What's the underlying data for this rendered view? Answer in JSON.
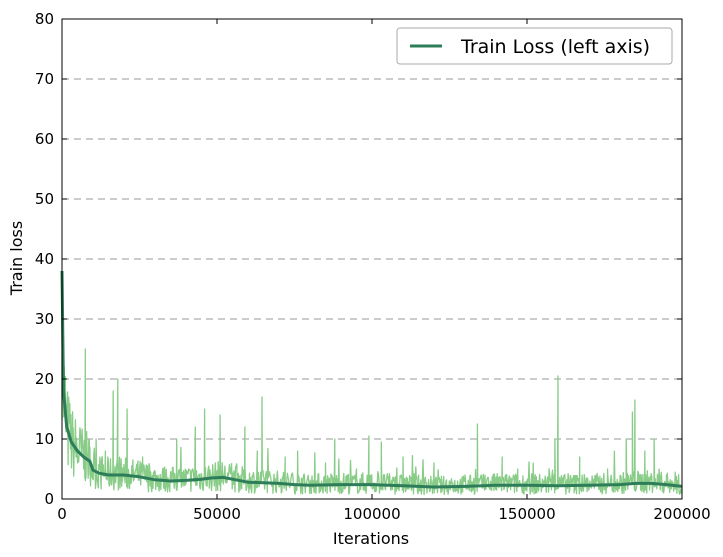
{
  "chart_data": {
    "type": "line",
    "title": "",
    "xlabel": "Iterations",
    "ylabel": "Train loss",
    "xlim": [
      0,
      200000
    ],
    "ylim": [
      0,
      80
    ],
    "x_ticks": [
      0,
      50000,
      100000,
      150000,
      200000
    ],
    "x_tick_labels": [
      "0",
      "50000",
      "100000",
      "150000",
      "200000"
    ],
    "y_ticks": [
      0,
      10,
      20,
      30,
      40,
      50,
      60,
      70,
      80
    ],
    "y_tick_labels": [
      "0",
      "10",
      "20",
      "30",
      "40",
      "50",
      "60",
      "70",
      "80"
    ],
    "grid": "horizontal dashed",
    "legend_position": "top-right",
    "legend_entries": [
      "Train Loss (left axis)"
    ],
    "colors": {
      "smoothed": "#2e7d5a",
      "raw": "#88cc88",
      "grid": "#999999"
    },
    "series": [
      {
        "name": "Train Loss (left axis)",
        "style": "smoothed",
        "x": [
          0,
          500,
          1500,
          3000,
          5000,
          7000,
          9000,
          10000,
          12000,
          15000,
          20000,
          25000,
          30000,
          35000,
          40000,
          45000,
          48000,
          52000,
          56000,
          60000,
          65000,
          70000,
          75000,
          80000,
          90000,
          100000,
          110000,
          120000,
          130000,
          140000,
          150000,
          160000,
          170000,
          180000,
          185000,
          190000,
          195000,
          200000
        ],
        "values": [
          38,
          18,
          12,
          9.5,
          8,
          7,
          6.3,
          4.8,
          4.3,
          4.0,
          4.0,
          3.7,
          3.2,
          3.0,
          3.1,
          3.3,
          3.5,
          3.6,
          3.2,
          2.8,
          2.7,
          2.6,
          2.4,
          2.3,
          2.4,
          2.4,
          2.2,
          2.0,
          2.1,
          2.3,
          2.3,
          2.2,
          2.3,
          2.4,
          2.6,
          2.6,
          2.4,
          2.1
        ]
      },
      {
        "style": "raw",
        "note_points": "noisy raw values; spikes listed",
        "x": [
          0,
          300,
          800,
          1200,
          2000,
          3500,
          5000,
          7000,
          7500,
          9000,
          11000,
          12500,
          14000,
          16500,
          18000,
          19500,
          21000,
          23000,
          26000,
          29000,
          33000,
          37000,
          40000,
          43000,
          46000,
          48000,
          51000,
          55000,
          59000,
          63000,
          64500,
          68000,
          72000,
          76000,
          81000,
          85000,
          88000,
          92000,
          95000,
          99000,
          103000,
          107000,
          110000,
          115000,
          120000,
          125000,
          130000,
          134000,
          137000,
          142000,
          147000,
          152000,
          156000,
          159000,
          160000,
          163000,
          167000,
          172000,
          176000,
          180000,
          182000,
          184000,
          184800,
          188000,
          191000,
          195000,
          200000
        ],
        "values": [
          32,
          24,
          15,
          16,
          11,
          9,
          6,
          5,
          25,
          4,
          10,
          3,
          8,
          18,
          20,
          3,
          15,
          3,
          7,
          3,
          5,
          10,
          2.5,
          12,
          15,
          4,
          14,
          3,
          12,
          8,
          17,
          2.5,
          7,
          8,
          3,
          6,
          10,
          4,
          5,
          10.5,
          9.5,
          3,
          7,
          2,
          6,
          3,
          4,
          12.5,
          3,
          7,
          5,
          6,
          3,
          10,
          20.5,
          2,
          7,
          3,
          5,
          3,
          10,
          14.5,
          16.5,
          8,
          10,
          4,
          2
        ]
      }
    ]
  }
}
